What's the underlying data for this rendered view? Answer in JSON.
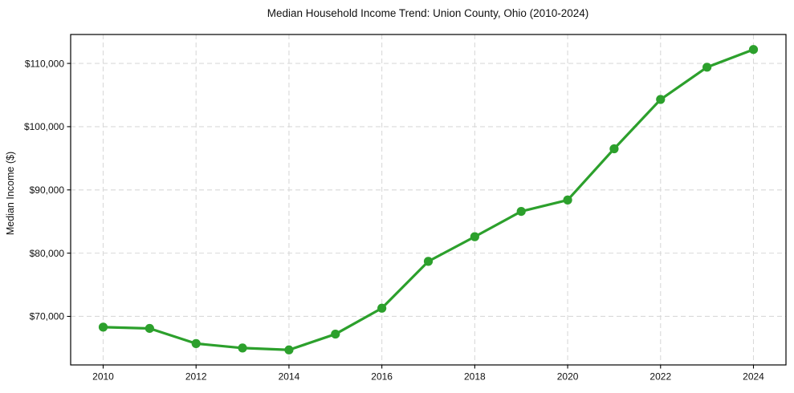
{
  "chart_data": {
    "type": "line",
    "title": "Median Household Income Trend: Union County, Ohio (2010-2024)",
    "xlabel": "",
    "ylabel": "Median Income ($)",
    "x": [
      2010,
      2011,
      2012,
      2013,
      2014,
      2015,
      2016,
      2017,
      2018,
      2019,
      2020,
      2021,
      2022,
      2023,
      2024
    ],
    "values": [
      68300,
      68100,
      65700,
      65000,
      64700,
      67200,
      71300,
      78700,
      82600,
      86600,
      88400,
      96500,
      104300,
      109400,
      112200
    ],
    "xlim": [
      2009.3,
      2024.7
    ],
    "ylim": [
      62325,
      114575
    ],
    "x_ticks": [
      {
        "value": 2010,
        "label": "2010"
      },
      {
        "value": 2012,
        "label": "2012"
      },
      {
        "value": 2014,
        "label": "2014"
      },
      {
        "value": 2016,
        "label": "2016"
      },
      {
        "value": 2018,
        "label": "2018"
      },
      {
        "value": 2020,
        "label": "2020"
      },
      {
        "value": 2022,
        "label": "2022"
      },
      {
        "value": 2024,
        "label": "2024"
      }
    ],
    "y_ticks": [
      {
        "value": 70000,
        "label": "$70,000"
      },
      {
        "value": 80000,
        "label": "$80,000"
      },
      {
        "value": 90000,
        "label": "$90,000"
      },
      {
        "value": 100000,
        "label": "$100,000"
      },
      {
        "value": 110000,
        "label": "$110,000"
      }
    ],
    "grid": true,
    "grid_style": "dashed",
    "legend_position": "none",
    "colors": {
      "line": "#2ca02c",
      "marker": "#2ca02c",
      "grid": "#d9d9d9",
      "axis": "#000000",
      "text": "#111111",
      "background": "#ffffff"
    }
  }
}
